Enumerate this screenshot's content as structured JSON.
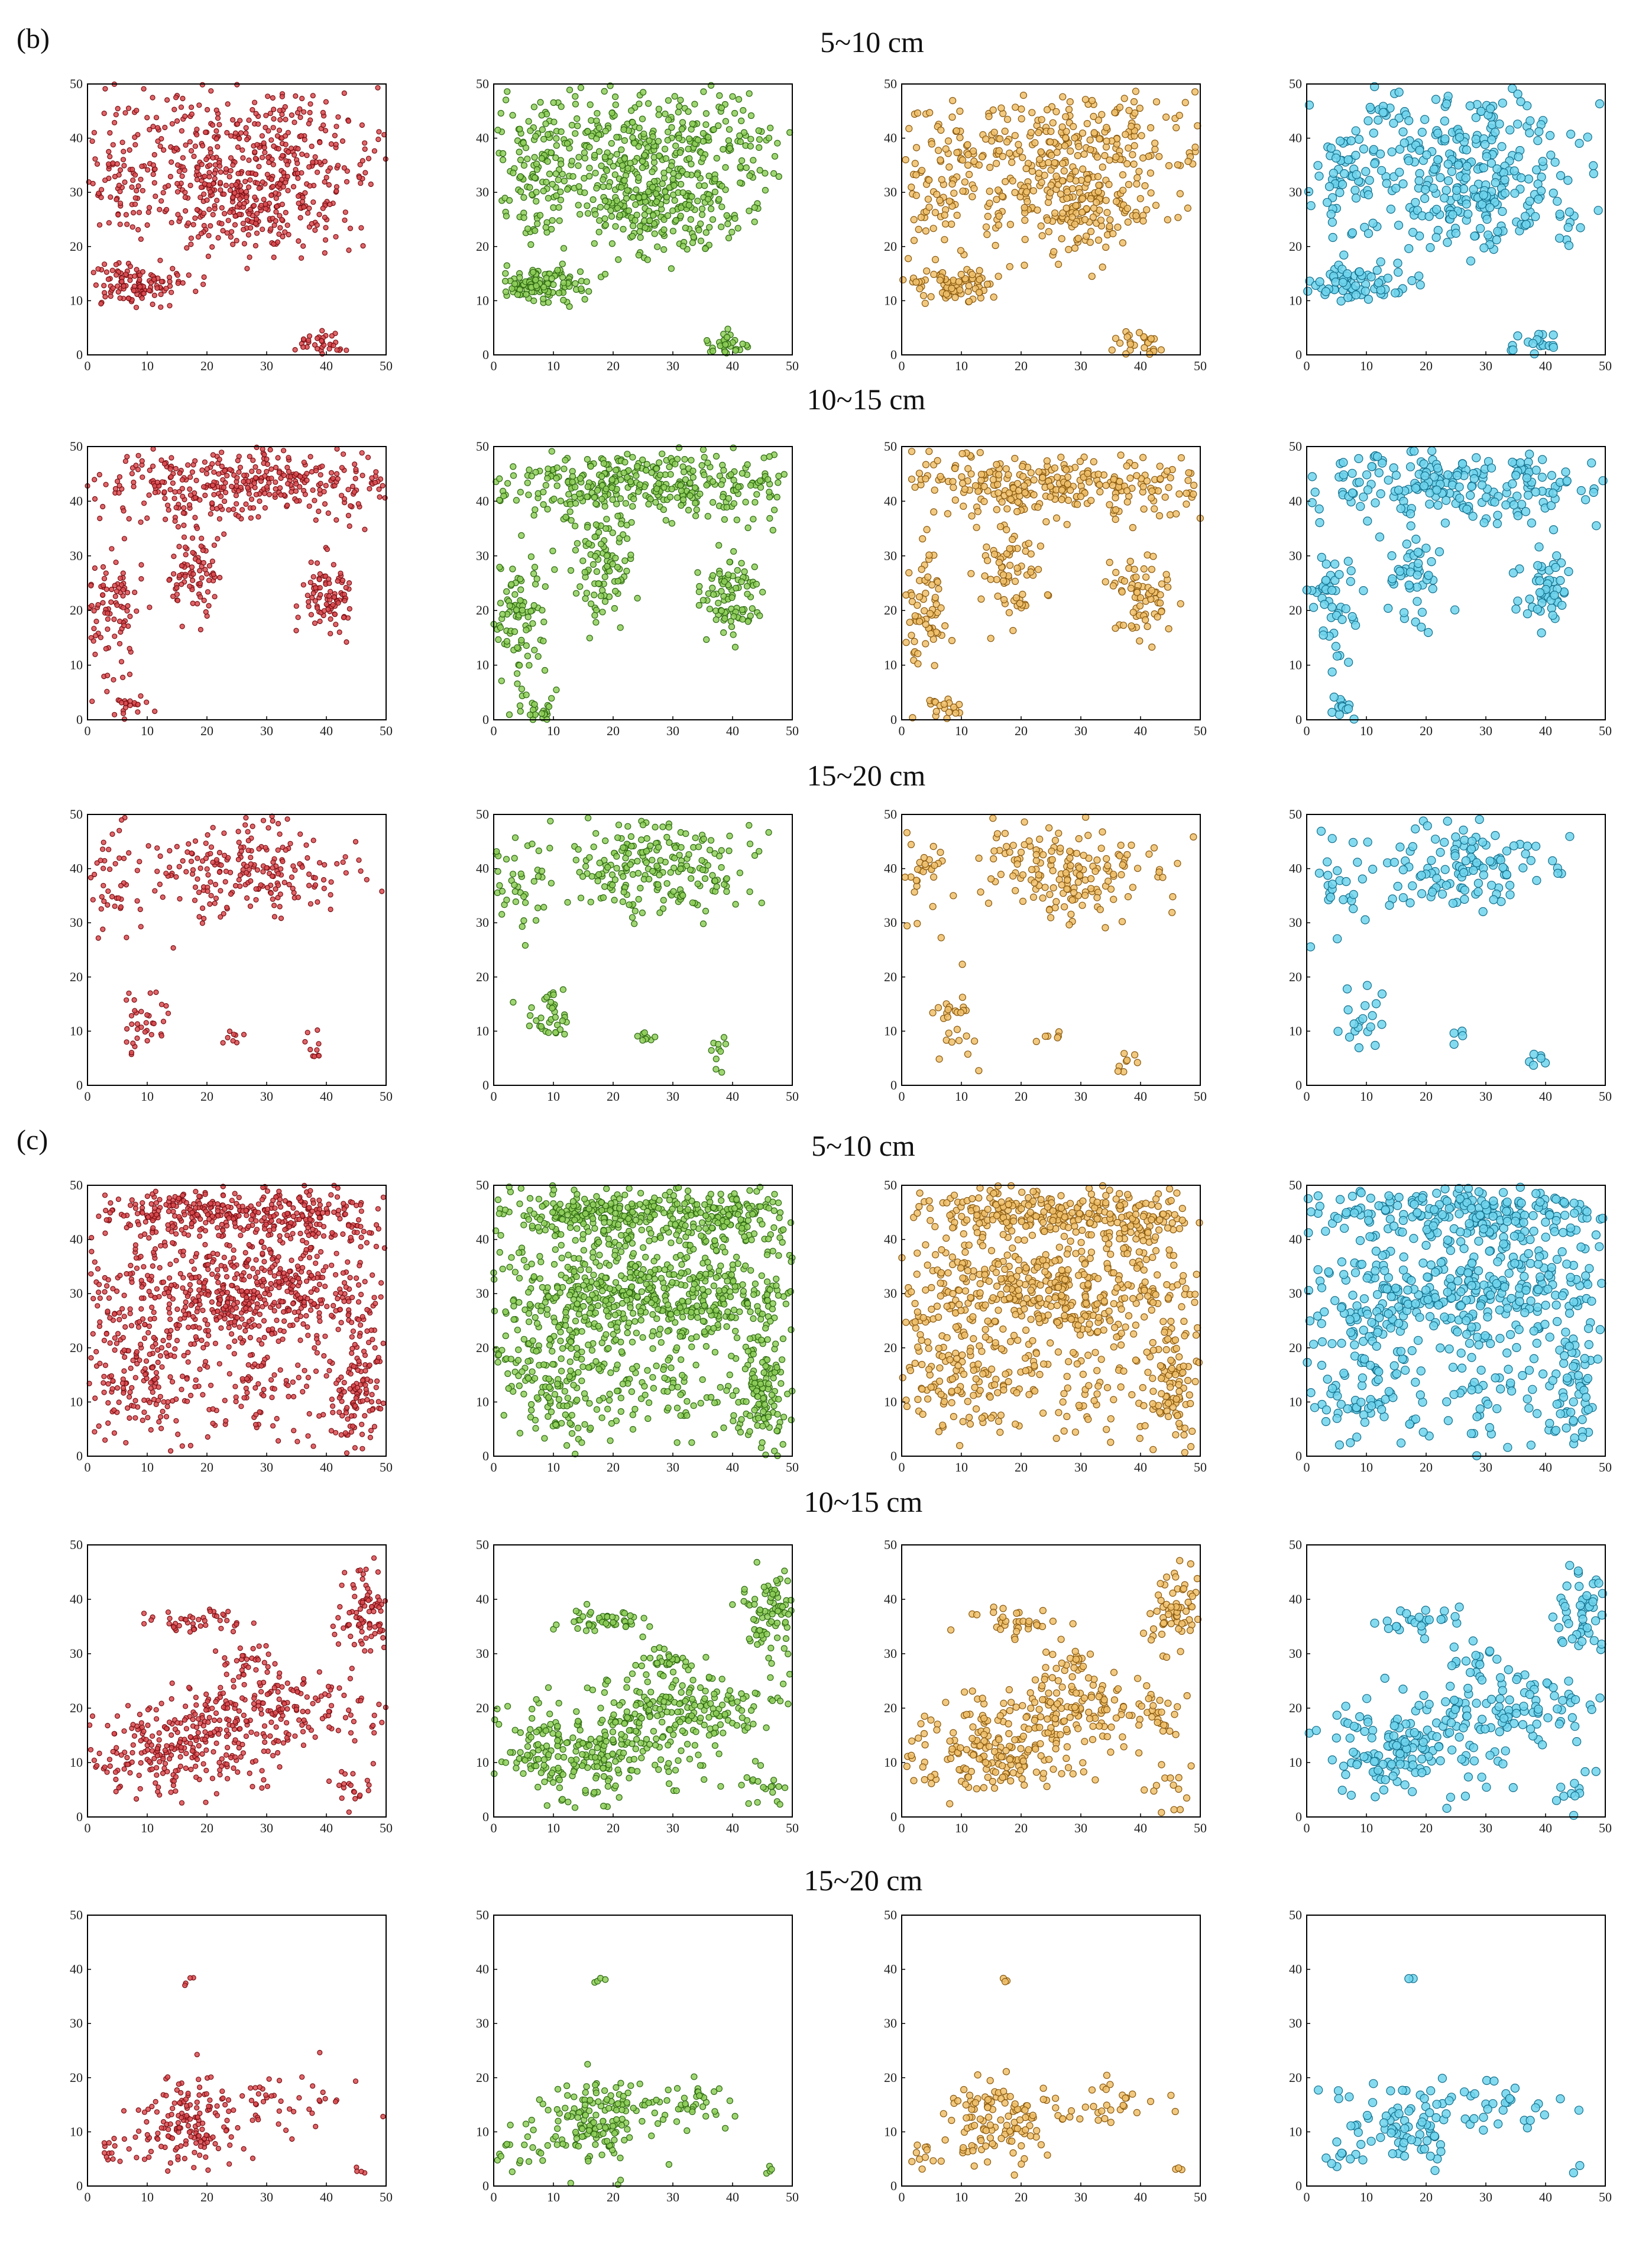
{
  "figure": {
    "panel_labels": [
      "(b)",
      "(c)"
    ],
    "row_titles": [
      "5~10 cm",
      "10~15 cm",
      "15~20 cm",
      "5~10 cm",
      "10~15 cm",
      "15~20 cm"
    ]
  },
  "colors": {
    "red_fill": "#d94b50",
    "red_edge": "#7a0e12",
    "green_fill": "#8fcf5b",
    "green_edge": "#2f6a12",
    "orange_fill": "#f0c06a",
    "orange_edge": "#8a5a10",
    "blue_fill": "#6fd3ec",
    "blue_edge": "#126f8c"
  },
  "chart_data": {
    "type": "scatter",
    "description_axes": {
      "xlim": [
        0,
        50
      ],
      "ylim": [
        0,
        50
      ],
      "xticks": [
        0,
        10,
        20,
        30,
        40,
        50
      ],
      "yticks": [
        0,
        10,
        20,
        30,
        40,
        50
      ]
    },
    "series_styles": [
      "red",
      "green",
      "orange",
      "blue"
    ],
    "rows": [
      {
        "panel": "(b)",
        "depth": "5~10 cm",
        "clusters": [
          {
            "cx": 25,
            "cy": 38,
            "rx": 22,
            "ry": 10,
            "n": 420
          },
          {
            "cx": 28,
            "cy": 27,
            "rx": 12,
            "ry": 7,
            "n": 220
          },
          {
            "cx": 8,
            "cy": 13,
            "rx": 7,
            "ry": 3,
            "n": 120
          },
          {
            "cx": 39,
            "cy": 2,
            "rx": 3,
            "ry": 2,
            "n": 35
          },
          {
            "cx": 6,
            "cy": 30,
            "rx": 5,
            "ry": 8,
            "n": 60
          }
        ]
      },
      {
        "panel": "(b)",
        "depth": "10~15 cm",
        "clusters": [
          {
            "cx": 25,
            "cy": 43,
            "rx": 23,
            "ry": 5,
            "n": 380
          },
          {
            "cx": 18,
            "cy": 27,
            "rx": 4,
            "ry": 8,
            "n": 90
          },
          {
            "cx": 40,
            "cy": 23,
            "rx": 4,
            "ry": 6,
            "n": 90
          },
          {
            "cx": 4,
            "cy": 20,
            "rx": 4,
            "ry": 9,
            "n": 90
          },
          {
            "cx": 7,
            "cy": 2,
            "rx": 3,
            "ry": 2,
            "n": 25
          }
        ]
      },
      {
        "panel": "(b)",
        "depth": "15~20 cm",
        "clusters": [
          {
            "cx": 27,
            "cy": 40,
            "rx": 14,
            "ry": 7,
            "n": 220
          },
          {
            "cx": 4,
            "cy": 38,
            "rx": 4,
            "ry": 9,
            "n": 40
          },
          {
            "cx": 9,
            "cy": 12,
            "rx": 3,
            "ry": 5,
            "n": 35
          },
          {
            "cx": 25,
            "cy": 9,
            "rx": 2,
            "ry": 1,
            "n": 8
          },
          {
            "cx": 38,
            "cy": 6,
            "rx": 2,
            "ry": 3,
            "n": 10
          }
        ]
      },
      {
        "panel": "(c)",
        "depth": "5~10 cm",
        "clusters": [
          {
            "cx": 25,
            "cy": 30,
            "rx": 24,
            "ry": 9,
            "n": 650
          },
          {
            "cx": 20,
            "cy": 45,
            "rx": 18,
            "ry": 4,
            "n": 280
          },
          {
            "cx": 40,
            "cy": 44,
            "rx": 9,
            "ry": 5,
            "n": 120
          },
          {
            "cx": 10,
            "cy": 14,
            "rx": 8,
            "ry": 10,
            "n": 160
          },
          {
            "cx": 45,
            "cy": 12,
            "rx": 4,
            "ry": 10,
            "n": 120
          },
          {
            "cx": 30,
            "cy": 12,
            "rx": 12,
            "ry": 8,
            "n": 90
          }
        ]
      },
      {
        "panel": "(c)",
        "depth": "10~15 cm",
        "clusters": [
          {
            "cx": 15,
            "cy": 12,
            "rx": 14,
            "ry": 7,
            "n": 260
          },
          {
            "cx": 32,
            "cy": 20,
            "rx": 14,
            "ry": 5,
            "n": 180
          },
          {
            "cx": 46,
            "cy": 38,
            "rx": 4,
            "ry": 6,
            "n": 90
          },
          {
            "cx": 18,
            "cy": 36,
            "rx": 6,
            "ry": 2,
            "n": 45
          },
          {
            "cx": 28,
            "cy": 28,
            "rx": 4,
            "ry": 3,
            "n": 35
          },
          {
            "cx": 45,
            "cy": 5,
            "rx": 4,
            "ry": 4,
            "n": 20
          }
        ]
      },
      {
        "panel": "(c)",
        "depth": "15~20 cm",
        "clusters": [
          {
            "cx": 17,
            "cy": 12,
            "rx": 8,
            "ry": 7,
            "n": 150
          },
          {
            "cx": 32,
            "cy": 15,
            "rx": 9,
            "ry": 4,
            "n": 45
          },
          {
            "cx": 5,
            "cy": 6,
            "rx": 4,
            "ry": 2,
            "n": 15
          },
          {
            "cx": 17,
            "cy": 38,
            "rx": 1,
            "ry": 1,
            "n": 4
          },
          {
            "cx": 46,
            "cy": 3,
            "rx": 2,
            "ry": 1,
            "n": 4
          }
        ]
      }
    ]
  }
}
